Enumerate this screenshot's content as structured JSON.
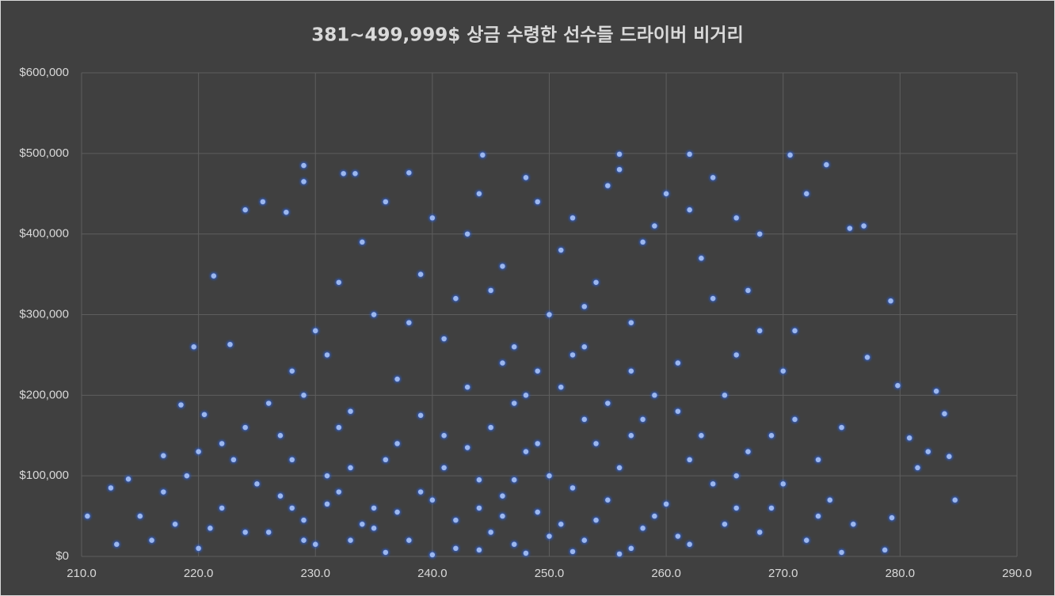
{
  "chart_data": {
    "type": "scatter",
    "title": "381~499,999$ 상금 수령한 선수들 드라이버 비거리",
    "color": "#9bb7ee",
    "grid": true,
    "xlim": [
      210,
      290
    ],
    "xticks": [
      {
        "value": 210,
        "label": "210.0"
      },
      {
        "value": 220,
        "label": "220.0"
      },
      {
        "value": 230,
        "label": "230.0"
      },
      {
        "value": 240,
        "label": "240.0"
      },
      {
        "value": 250,
        "label": "250.0"
      },
      {
        "value": 260,
        "label": "260.0"
      },
      {
        "value": 270,
        "label": "270.0"
      },
      {
        "value": 280,
        "label": "280.0"
      },
      {
        "value": 290,
        "label": "290.0"
      }
    ],
    "ylim": [
      0,
      600000
    ],
    "yticks": [
      {
        "value": 0,
        "label": "$0"
      },
      {
        "value": 100000,
        "label": "$100,000"
      },
      {
        "value": 200000,
        "label": "$200,000"
      },
      {
        "value": 300000,
        "label": "$300,000"
      },
      {
        "value": 400000,
        "label": "$400,000"
      },
      {
        "value": 500000,
        "label": "$500,000"
      },
      {
        "value": 600000,
        "label": "$600,000"
      }
    ],
    "x": [
      284.7,
      284.2,
      283.8,
      283.1,
      279.8,
      279.2,
      277.2,
      276.9,
      275.7,
      273.7,
      270.6,
      229.0,
      229.0,
      224.0,
      225.5,
      221.3,
      219.6,
      232.4,
      233.4,
      238.0,
      244.3,
      256.0,
      262.0,
      280.8,
      281.5,
      282.4,
      278.7,
      279.3,
      275.0,
      210.5,
      212.5,
      214.0,
      217.0,
      218.5,
      220.5,
      222.7,
      227.5,
      226,
      228,
      230,
      232,
      234,
      236,
      238,
      240,
      242,
      244,
      246,
      248,
      250,
      252,
      254,
      256,
      258,
      260,
      262,
      264,
      227,
      229,
      231,
      233,
      235,
      237,
      239,
      241,
      243,
      245,
      247,
      249,
      251,
      253,
      255,
      257,
      259,
      261,
      263,
      265,
      267,
      269,
      271,
      273,
      266,
      268,
      270,
      272,
      274,
      276,
      216,
      218,
      220,
      222,
      224,
      215,
      213,
      217,
      219,
      221,
      223,
      225,
      236,
      240,
      244,
      248,
      252,
      256,
      245,
      247,
      243,
      241,
      239,
      237,
      235,
      233,
      231,
      229,
      227,
      246,
      244,
      242,
      250,
      254,
      258,
      262,
      266,
      249,
      251,
      253,
      255,
      257,
      259,
      261,
      263,
      238,
      242,
      246,
      250,
      254,
      258,
      262,
      244,
      248,
      252,
      256,
      260,
      264,
      240,
      236,
      234,
      232,
      230,
      228,
      226,
      224,
      222,
      220,
      245,
      247,
      249,
      251,
      253,
      255,
      257,
      259,
      261,
      239,
      237,
      235,
      233,
      231,
      229,
      228,
      232,
      241,
      243,
      247,
      249,
      253,
      257,
      265,
      267,
      269,
      271,
      273,
      275,
      270,
      268,
      266,
      264,
      268,
      272,
      266,
      246,
      248,
      252
    ],
    "values": [
      70000,
      124000,
      177000,
      205000,
      212000,
      317000,
      247000,
      410000,
      407000,
      486000,
      498000,
      485000,
      465000,
      430000,
      440000,
      348000,
      260000,
      475000,
      475000,
      476000,
      498000,
      499000,
      499000,
      147000,
      110000,
      130000,
      8000,
      48000,
      5000,
      50000,
      85000,
      96000,
      125000,
      188000,
      176000,
      263000,
      427000,
      30000,
      60000,
      15000,
      80000,
      40000,
      120000,
      20000,
      70000,
      10000,
      95000,
      50000,
      130000,
      25000,
      85000,
      45000,
      110000,
      35000,
      65000,
      15000,
      90000,
      150000,
      200000,
      250000,
      180000,
      300000,
      220000,
      350000,
      270000,
      400000,
      330000,
      260000,
      440000,
      380000,
      310000,
      460000,
      290000,
      410000,
      240000,
      370000,
      200000,
      330000,
      150000,
      280000,
      120000,
      60000,
      30000,
      90000,
      20000,
      70000,
      40000,
      20000,
      40000,
      10000,
      60000,
      30000,
      50000,
      15000,
      80000,
      100000,
      35000,
      120000,
      90000,
      5000,
      2000,
      8000,
      4000,
      6000,
      3000,
      160000,
      190000,
      210000,
      150000,
      175000,
      140000,
      60000,
      20000,
      100000,
      45000,
      75000,
      75000,
      60000,
      45000,
      100000,
      140000,
      170000,
      120000,
      100000,
      230000,
      210000,
      260000,
      190000,
      230000,
      200000,
      180000,
      150000,
      290000,
      320000,
      360000,
      300000,
      340000,
      390000,
      430000,
      450000,
      470000,
      420000,
      480000,
      450000,
      470000,
      420000,
      440000,
      390000,
      340000,
      280000,
      230000,
      190000,
      160000,
      140000,
      130000,
      30000,
      15000,
      55000,
      40000,
      20000,
      70000,
      10000,
      50000,
      25000,
      80000,
      55000,
      35000,
      110000,
      65000,
      20000,
      120000,
      160000,
      110000,
      135000,
      95000,
      140000,
      170000,
      150000,
      40000,
      130000,
      60000,
      170000,
      50000,
      160000,
      230000,
      280000,
      250000,
      320000,
      400000,
      450000,
      420000,
      240000,
      200000,
      250000
    ]
  }
}
